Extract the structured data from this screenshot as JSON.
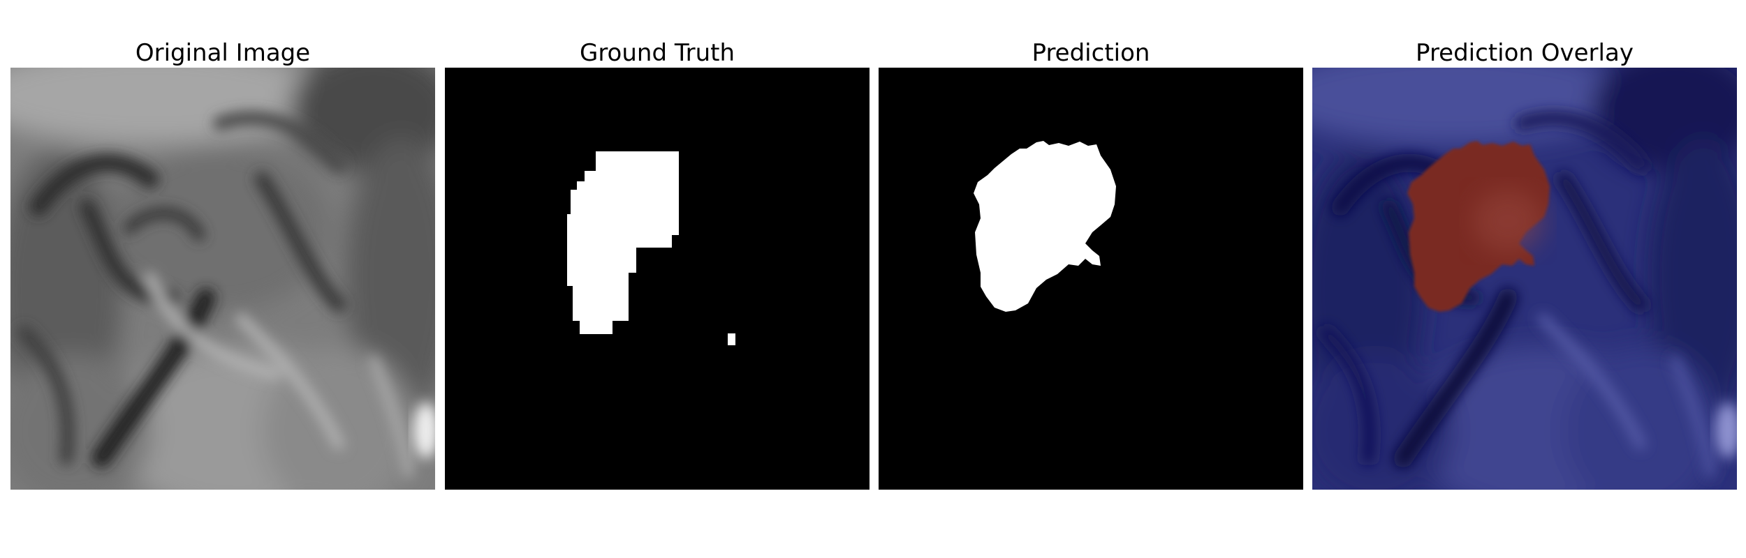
{
  "panels": [
    {
      "title": "Original Image"
    },
    {
      "title": "Ground Truth"
    },
    {
      "title": "Prediction"
    },
    {
      "title": "Prediction Overlay"
    }
  ],
  "colors": {
    "background": "#ffffff",
    "mask_background": "#000000",
    "mask_foreground": "#ffffff",
    "overlay_base": "#2a2f78",
    "overlay_region": "#7a2a20"
  }
}
